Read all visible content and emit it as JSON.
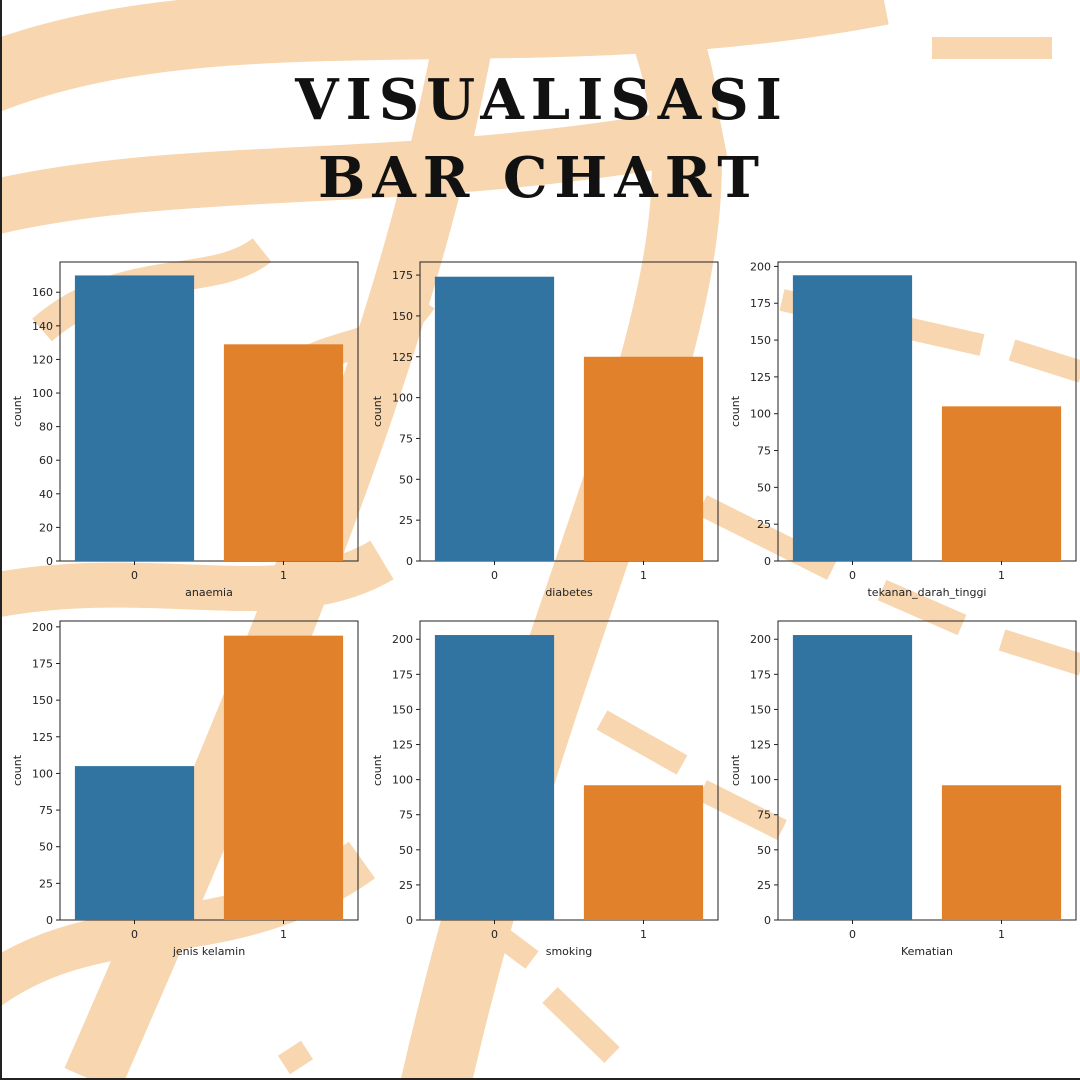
{
  "title": {
    "line1": "VISUALISASI",
    "line2": "BAR CHART"
  },
  "colors": {
    "accent_blue": "#3274a1",
    "accent_orange": "#e1812c",
    "decor_peach": "#f7d6b0",
    "text": "#111111"
  },
  "chart_data": [
    {
      "type": "bar",
      "xlabel": "anaemia",
      "ylabel": "count",
      "categories": [
        "0",
        "1"
      ],
      "values": [
        170,
        129
      ],
      "ylim": [
        0,
        178
      ],
      "yticks": [
        0,
        20,
        40,
        60,
        80,
        100,
        120,
        140,
        160
      ],
      "grid": false
    },
    {
      "type": "bar",
      "xlabel": "diabetes",
      "ylabel": "count",
      "categories": [
        "0",
        "1"
      ],
      "values": [
        174,
        125
      ],
      "ylim": [
        0,
        183
      ],
      "yticks": [
        0,
        25,
        50,
        75,
        100,
        125,
        150,
        175
      ],
      "grid": false
    },
    {
      "type": "bar",
      "xlabel": "tekanan_darah_tinggi",
      "ylabel": "count",
      "categories": [
        "0",
        "1"
      ],
      "values": [
        194,
        105
      ],
      "ylim": [
        0,
        203
      ],
      "yticks": [
        0,
        25,
        50,
        75,
        100,
        125,
        150,
        175,
        200
      ],
      "grid": false
    },
    {
      "type": "bar",
      "xlabel": "jenis kelamin",
      "ylabel": "count",
      "categories": [
        "0",
        "1"
      ],
      "values": [
        105,
        194
      ],
      "ylim": [
        0,
        204
      ],
      "yticks": [
        0,
        25,
        50,
        75,
        100,
        125,
        150,
        175,
        200
      ],
      "grid": false
    },
    {
      "type": "bar",
      "xlabel": "smoking",
      "ylabel": "count",
      "categories": [
        "0",
        "1"
      ],
      "values": [
        203,
        96
      ],
      "ylim": [
        0,
        213
      ],
      "yticks": [
        0,
        25,
        50,
        75,
        100,
        125,
        150,
        175,
        200
      ],
      "grid": false
    },
    {
      "type": "bar",
      "xlabel": "Kematian",
      "ylabel": "count",
      "categories": [
        "0",
        "1"
      ],
      "values": [
        203,
        96
      ],
      "ylim": [
        0,
        213
      ],
      "yticks": [
        0,
        25,
        50,
        75,
        100,
        125,
        150,
        175,
        200
      ],
      "grid": false
    }
  ]
}
